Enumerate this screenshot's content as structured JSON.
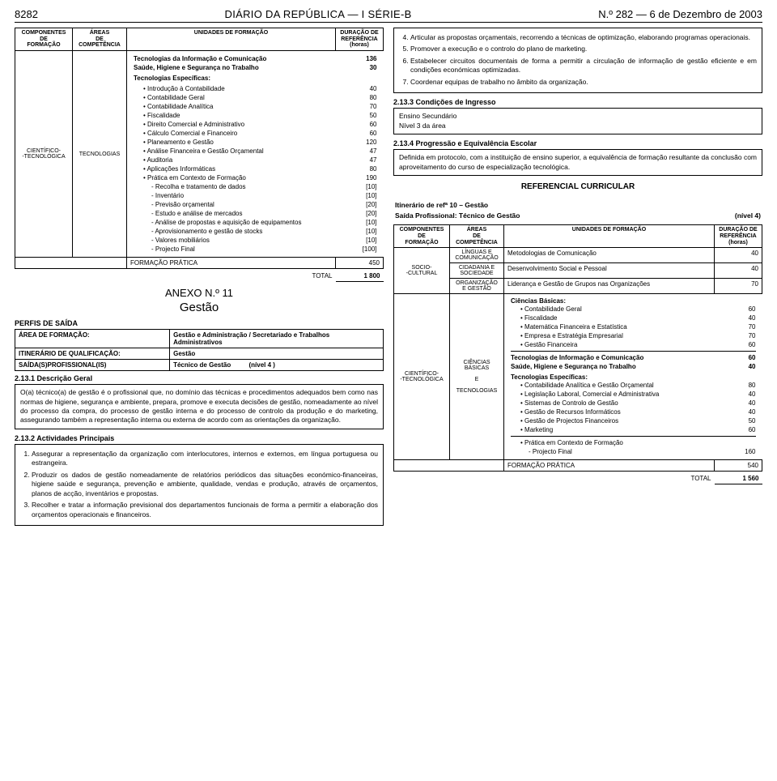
{
  "header": {
    "pagenum": "8282",
    "title": "DIÁRIO DA REPÚBLICA — I SÉRIE-B",
    "date": "N.º 282 — 6 de Dezembro de 2003"
  },
  "tbl_header": {
    "c1a": "COMPONENTES",
    "c1b": "DE",
    "c1c": "FORMAÇÃO",
    "c2a": "ÁREAS",
    "c2b": "DE",
    "c2c": "COMPETÊNCIA",
    "c3": "UNIDADES DE FORMAÇÃO",
    "c4a": "DURAÇÃO DE",
    "c4b": "REFERÊNCIA",
    "c4c": "(horas)"
  },
  "left_side": {
    "comp": "CIENTÍFICO-\n-TECNOLÓGICA",
    "area": "TECNOLOGIAS",
    "pre": [
      {
        "lbl": "Tecnologias da Informação e Comunicação",
        "num": "136"
      },
      {
        "lbl": "Saúde, Higiene e Segurança no Trabalho",
        "num": "30"
      }
    ],
    "esp_title": "Tecnologias Específicas:",
    "items": [
      {
        "lbl": "Introdução à Contabilidade",
        "num": "40"
      },
      {
        "lbl": "Contabilidade Geral",
        "num": "80"
      },
      {
        "lbl": "Contabilidade Analítica",
        "num": "70"
      },
      {
        "lbl": "Fiscalidade",
        "num": "50"
      },
      {
        "lbl": "Direito Comercial e Administrativo",
        "num": "60"
      },
      {
        "lbl": "Cálculo Comercial e Financeiro",
        "num": "60"
      },
      {
        "lbl": "Planeamento e Gestão",
        "num": "120"
      },
      {
        "lbl": "Análise Financeira e Gestão Orçamental",
        "num": "47"
      },
      {
        "lbl": "Auditoria",
        "num": "47"
      },
      {
        "lbl": "Aplicações Informáticas",
        "num": "80"
      },
      {
        "lbl": "Prática em Contexto de Formação",
        "num": "190"
      }
    ],
    "subitems": [
      {
        "lbl": "- Recolha e tratamento de dados",
        "num": "[10]"
      },
      {
        "lbl": "- Inventário",
        "num": "[10]"
      },
      {
        "lbl": "- Previsão orçamental",
        "num": "[20]"
      },
      {
        "lbl": "- Estudo e análise de mercados",
        "num": "[20]"
      },
      {
        "lbl": "- Análise de propostas e aquisição de equipamentos",
        "num": "[10]"
      },
      {
        "lbl": "- Aprovisionamento e gestão de stocks",
        "num": "[10]"
      },
      {
        "lbl": "- Valores mobiliários",
        "num": "[10]"
      },
      {
        "lbl": "- Projecto Final",
        "num": "[100]"
      }
    ],
    "fp": {
      "lbl": "FORMAÇÃO PRÁTICA",
      "num": "450"
    },
    "total": {
      "lbl": "TOTAL",
      "num": "1 800"
    }
  },
  "anexo": {
    "num": "ANEXO N.º 11",
    "title": "Gestão"
  },
  "perfis": {
    "title": "PERFIS DE SAÍDA",
    "r1a": "ÁREA DE FORMAÇÃO:",
    "r1b": "Gestão e Administração / Secretariado e Trabalhos Administrativos",
    "r2a": "ITINERÁRIO DE QUALIFICAÇÃO:",
    "r2b": "Gestão",
    "r3a": "SAÍDA(S)PROFISSIONAL(IS)",
    "r3b": "Técnico de Gestão",
    "r3c": "(nível 4 )"
  },
  "s2131": {
    "title": "2.13.1 Descrição Geral",
    "body": "O(a) técnico(a) de gestão é o profissional que, no domínio das técnicas e procedimentos adequados bem como nas normas de higiene, segurança e ambiente, prepara, promove e executa decisões de gestão, nomeadamente ao nível do processo da compra, do processo de gestão interna e do processo de controlo da produção e do marketing, assegurando também a representação interna ou externa de acordo com as orientações da organização."
  },
  "s2132": {
    "title": "2.13.2 Actividades Principais",
    "i1": "Assegurar a representação da organização com interlocutores, internos e externos, em língua portuguesa ou estrangeira.",
    "i2": "Produzir os dados de gestão nomeadamente de relatórios periódicos das situações económico-financeiras, higiene saúde e segurança, prevenção e ambiente, qualidade, vendas e produção, através de orçamentos, planos de acção, inventários e propostas.",
    "i3": "Recolher e tratar a informação previsional dos departamentos funcionais de forma a permitir a elaboração dos orçamentos operacionais e financeiros."
  },
  "cont_list": {
    "i4": "Articular as propostas orçamentais, recorrendo a técnicas de optimização, elaborando programas operacionais.",
    "i5": "Promover a execução e o controlo do plano de marketing.",
    "i6": "Estabelecer circuitos documentais de forma a permitir a circulação de informação de gestão eficiente e em condições económicas optimizadas.",
    "i7": "Coordenar equipas de trabalho no âmbito da organização."
  },
  "s2133": {
    "title": "2.13.3 Condições de Ingresso",
    "l1": "Ensino Secundário",
    "l2": "Nível 3 da área"
  },
  "s2134": {
    "title": "2.13.4 Progressão e Equivalência Escolar",
    "body": "Definida em protocolo, com a instituição de ensino superior, a equivalência de formação resultante da conclusão com aproveitamento do curso de especialização tecnológica."
  },
  "refcur": "REFERENCIAL CURRICULAR",
  "itin": {
    "l1": "Itinerário de refª 10 – Gestão",
    "l2a": "Saída Profissional: Técnico de Gestão",
    "l2b": "(nível 4)"
  },
  "right_table": {
    "socio": {
      "comp": "SOCIO-\n-CULTURAL",
      "a1": "LÍNGUAS E COMUNICAÇÃO",
      "r1": {
        "lbl": "Metodologias de Comunicação",
        "num": "40"
      },
      "a2": "CIDADANIA E SOCIEDADE",
      "r2": {
        "lbl": "Desenvolvimento Social e Pessoal",
        "num": "40"
      },
      "a3": "ORGANIZAÇÃO E GESTÃO",
      "r3": {
        "lbl": "Liderança e Gestão de Grupos nas Organizações",
        "num": "70"
      }
    },
    "cien": {
      "comp": "CIENTÍFICO-\n-TECNOLÓGICA",
      "area": "CIÊNCIAS BÁSICAS\n\nE\n\nTECNOLOGIAS",
      "cb_title": "Ciências Básicas:",
      "cb": [
        {
          "lbl": "Contabilidade Geral",
          "num": "60"
        },
        {
          "lbl": "Fiscalidade",
          "num": "40"
        },
        {
          "lbl": "Matemática Financeira e Estatística",
          "num": "70"
        },
        {
          "lbl": "Empresa e Estratégia Empresarial",
          "num": "70"
        },
        {
          "lbl": "Gestão Financeira",
          "num": "60"
        }
      ],
      "mid": [
        {
          "lbl": "Tecnologias de Informação e Comunicação",
          "num": "60"
        },
        {
          "lbl": "Saúde, Higiene e Segurança no Trabalho",
          "num": "40"
        }
      ],
      "te_title": "Tecnologias Específicas:",
      "te": [
        {
          "lbl": "Contabilidade Analítica e Gestão Orçamental",
          "num": "80"
        },
        {
          "lbl": "Legislação Laboral, Comercial e Administrativa",
          "num": "40"
        },
        {
          "lbl": "Sistemas de Controlo de Gestão",
          "num": "40"
        },
        {
          "lbl": "Gestão de Recursos Informáticos",
          "num": "40"
        },
        {
          "lbl": "Gestão de Projectos Financeiros",
          "num": "50"
        },
        {
          "lbl": "Marketing",
          "num": "60"
        }
      ],
      "pc": {
        "lbl": "Prática em Contexto de Formação",
        "sub": "- Projecto Final",
        "num": "160"
      }
    },
    "fp": {
      "lbl": "FORMAÇÃO PRÁTICA",
      "num": "540"
    },
    "total": {
      "lbl": "TOTAL",
      "num": "1 560"
    }
  }
}
